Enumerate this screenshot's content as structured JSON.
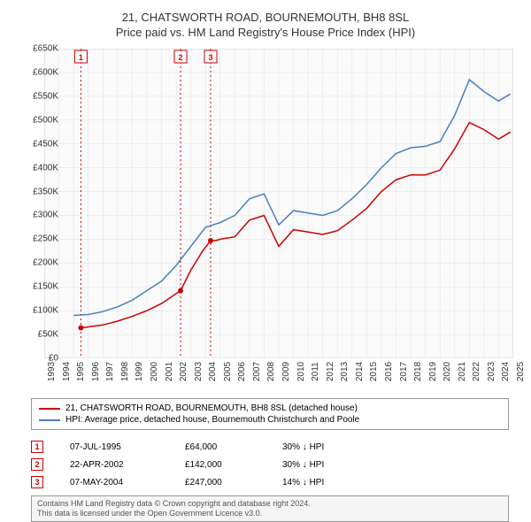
{
  "title": {
    "line1": "21, CHATSWORTH ROAD, BOURNEMOUTH, BH8 8SL",
    "line2": "Price paid vs. HM Land Registry's House Price Index (HPI)"
  },
  "chart": {
    "type": "line",
    "background_color": "#ffffff",
    "plot_background": "#fafafa",
    "grid_color": "#e0e0e0",
    "axis_color": "#888888",
    "x": {
      "min": 1993,
      "max": 2025,
      "ticks": [
        1993,
        1994,
        1995,
        1996,
        1997,
        1998,
        1999,
        2000,
        2001,
        2002,
        2003,
        2004,
        2005,
        2006,
        2007,
        2008,
        2009,
        2010,
        2011,
        2012,
        2013,
        2014,
        2015,
        2016,
        2017,
        2018,
        2019,
        2020,
        2021,
        2022,
        2023,
        2024,
        2025
      ]
    },
    "y": {
      "min": 0,
      "max": 650000,
      "ticks": [
        0,
        50000,
        100000,
        150000,
        200000,
        250000,
        300000,
        350000,
        400000,
        450000,
        500000,
        550000,
        600000,
        650000
      ],
      "tick_labels": [
        "£0",
        "£50K",
        "£100K",
        "£150K",
        "£200K",
        "£250K",
        "£300K",
        "£350K",
        "£400K",
        "£450K",
        "£500K",
        "£550K",
        "£600K",
        "£650K"
      ]
    },
    "series": [
      {
        "id": "property",
        "label": "21, CHATSWORTH ROAD, BOURNEMOUTH, BH8 8SL (detached house)",
        "color": "#cc0000",
        "line_width": 1.5,
        "data": [
          [
            1995.5,
            64000
          ],
          [
            1996,
            66000
          ],
          [
            1997,
            70000
          ],
          [
            1998,
            78000
          ],
          [
            1999,
            88000
          ],
          [
            2000,
            100000
          ],
          [
            2001,
            115000
          ],
          [
            2002.3,
            142000
          ],
          [
            2003,
            185000
          ],
          [
            2003.8,
            225000
          ],
          [
            2004.35,
            247000
          ],
          [
            2004.7,
            247000
          ],
          [
            2005,
            250000
          ],
          [
            2006,
            255000
          ],
          [
            2007,
            290000
          ],
          [
            2008,
            300000
          ],
          [
            2009,
            235000
          ],
          [
            2010,
            270000
          ],
          [
            2011,
            265000
          ],
          [
            2012,
            260000
          ],
          [
            2013,
            268000
          ],
          [
            2014,
            290000
          ],
          [
            2015,
            315000
          ],
          [
            2016,
            350000
          ],
          [
            2017,
            375000
          ],
          [
            2018,
            385000
          ],
          [
            2019,
            385000
          ],
          [
            2020,
            395000
          ],
          [
            2021,
            440000
          ],
          [
            2022,
            495000
          ],
          [
            2023,
            480000
          ],
          [
            2024,
            460000
          ],
          [
            2024.8,
            475000
          ]
        ]
      },
      {
        "id": "hpi",
        "label": "HPI: Average price, detached house, Bournemouth Christchurch and Poole",
        "color": "#4a7fc4",
        "line_width": 1.5,
        "data": [
          [
            1995,
            90000
          ],
          [
            1996,
            92000
          ],
          [
            1997,
            98000
          ],
          [
            1998,
            108000
          ],
          [
            1999,
            122000
          ],
          [
            2000,
            142000
          ],
          [
            2001,
            162000
          ],
          [
            2002,
            195000
          ],
          [
            2003,
            235000
          ],
          [
            2004,
            275000
          ],
          [
            2005,
            285000
          ],
          [
            2006,
            300000
          ],
          [
            2007,
            335000
          ],
          [
            2008,
            345000
          ],
          [
            2009,
            280000
          ],
          [
            2010,
            310000
          ],
          [
            2011,
            305000
          ],
          [
            2012,
            300000
          ],
          [
            2013,
            310000
          ],
          [
            2014,
            335000
          ],
          [
            2015,
            365000
          ],
          [
            2016,
            400000
          ],
          [
            2017,
            430000
          ],
          [
            2018,
            442000
          ],
          [
            2019,
            445000
          ],
          [
            2020,
            455000
          ],
          [
            2021,
            510000
          ],
          [
            2022,
            585000
          ],
          [
            2023,
            560000
          ],
          [
            2024,
            540000
          ],
          [
            2024.8,
            555000
          ]
        ]
      }
    ],
    "markers": [
      {
        "n": "1",
        "x": 1995.5,
        "y": 64000,
        "color": "#cc0000"
      },
      {
        "n": "2",
        "x": 2002.3,
        "y": 142000,
        "color": "#cc0000"
      },
      {
        "n": "3",
        "x": 2004.35,
        "y": 247000,
        "color": "#cc0000"
      }
    ]
  },
  "legend": {
    "items": [
      {
        "color": "#cc0000",
        "label": "21, CHATSWORTH ROAD, BOURNEMOUTH, BH8 8SL (detached house)"
      },
      {
        "color": "#4a7fc4",
        "label": "HPI: Average price, detached house, Bournemouth Christchurch and Poole"
      }
    ]
  },
  "events": [
    {
      "n": "1",
      "color": "#cc0000",
      "date": "07-JUL-1995",
      "price": "£64,000",
      "delta": "30% ↓ HPI"
    },
    {
      "n": "2",
      "color": "#cc0000",
      "date": "22-APR-2002",
      "price": "£142,000",
      "delta": "30% ↓ HPI"
    },
    {
      "n": "3",
      "color": "#cc0000",
      "date": "07-MAY-2004",
      "price": "£247,000",
      "delta": "14% ↓ HPI"
    }
  ],
  "attribution": {
    "line1": "Contains HM Land Registry data © Crown copyright and database right 2024.",
    "line2": "This data is licensed under the Open Government Licence v3.0."
  }
}
